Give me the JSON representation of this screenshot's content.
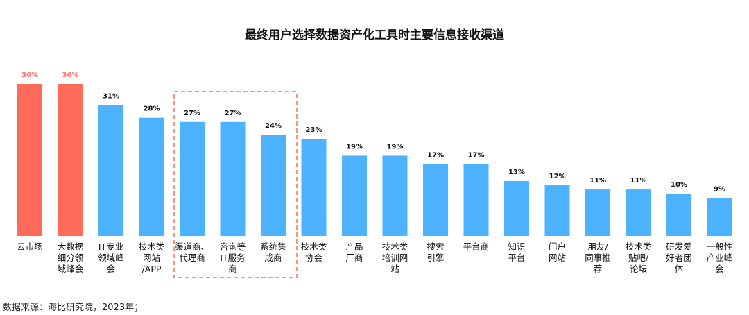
{
  "title": "最终用户选择数据资产化工具时主要信息接收渠道",
  "source": "数据来源：海比研究院，2023年；",
  "colors": {
    "highlight": "#ff6b5b",
    "normal": "#4db3ff",
    "highlight_label": "#ff6b5b",
    "normal_label": "#111111",
    "box": "#ff6b5b"
  },
  "chart_data": {
    "type": "bar",
    "categories": [
      [
        "云市场"
      ],
      [
        "大数据",
        "细分领",
        "域峰会"
      ],
      [
        "IT专业",
        "领域峰",
        "会"
      ],
      [
        "技术类",
        "网站",
        "/APP"
      ],
      [
        "渠道商、",
        "代理商"
      ],
      [
        "咨询等",
        "IT服务",
        "商"
      ],
      [
        "系统集",
        "成商"
      ],
      [
        "技术类",
        "协会"
      ],
      [
        "产品",
        "厂商"
      ],
      [
        "技术类",
        "培训网",
        "站"
      ],
      [
        "搜索",
        "引擎"
      ],
      [
        "平台商"
      ],
      [
        "知识",
        "平台"
      ],
      [
        "门户",
        "网站"
      ],
      [
        "朋友/",
        "同事推",
        "荐"
      ],
      [
        "技术类",
        "贴吧/",
        "论坛"
      ],
      [
        "研发爱",
        "好者团",
        "体"
      ],
      [
        "一般性",
        "产业峰",
        "会"
      ]
    ],
    "values": [
      36,
      36,
      31,
      28,
      27,
      27,
      24,
      23,
      19,
      19,
      17,
      17,
      13,
      12,
      11,
      11,
      10,
      9
    ],
    "value_labels": [
      "36%",
      "36%",
      "31%",
      "28%",
      "27%",
      "27%",
      "24%",
      "23%",
      "19%",
      "19%",
      "17%",
      "17%",
      "13%",
      "12%",
      "11%",
      "11%",
      "10%",
      "9%"
    ],
    "highlighted": [
      true,
      true,
      false,
      false,
      false,
      false,
      false,
      false,
      false,
      false,
      false,
      false,
      false,
      false,
      false,
      false,
      false,
      false
    ],
    "boxed_categories": [
      4,
      5,
      6
    ],
    "ylim": [
      0,
      36
    ],
    "grid": false,
    "legend": "none",
    "xlabel": "",
    "ylabel": ""
  }
}
